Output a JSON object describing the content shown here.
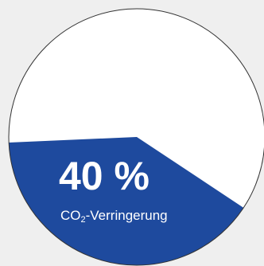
{
  "chart_data": {
    "type": "pie",
    "slices": [
      {
        "label": "CO2-Verringerung",
        "value": 40,
        "color": "#1e4a9e"
      },
      {
        "label": "",
        "value": 60,
        "color": "#ffffff"
      }
    ],
    "value_label": "40 %",
    "caption": {
      "prefix": "CO",
      "subscript": "2",
      "suffix": "-Verringerung"
    }
  },
  "colors": {
    "background": "#efefef",
    "outline": "#333333"
  }
}
